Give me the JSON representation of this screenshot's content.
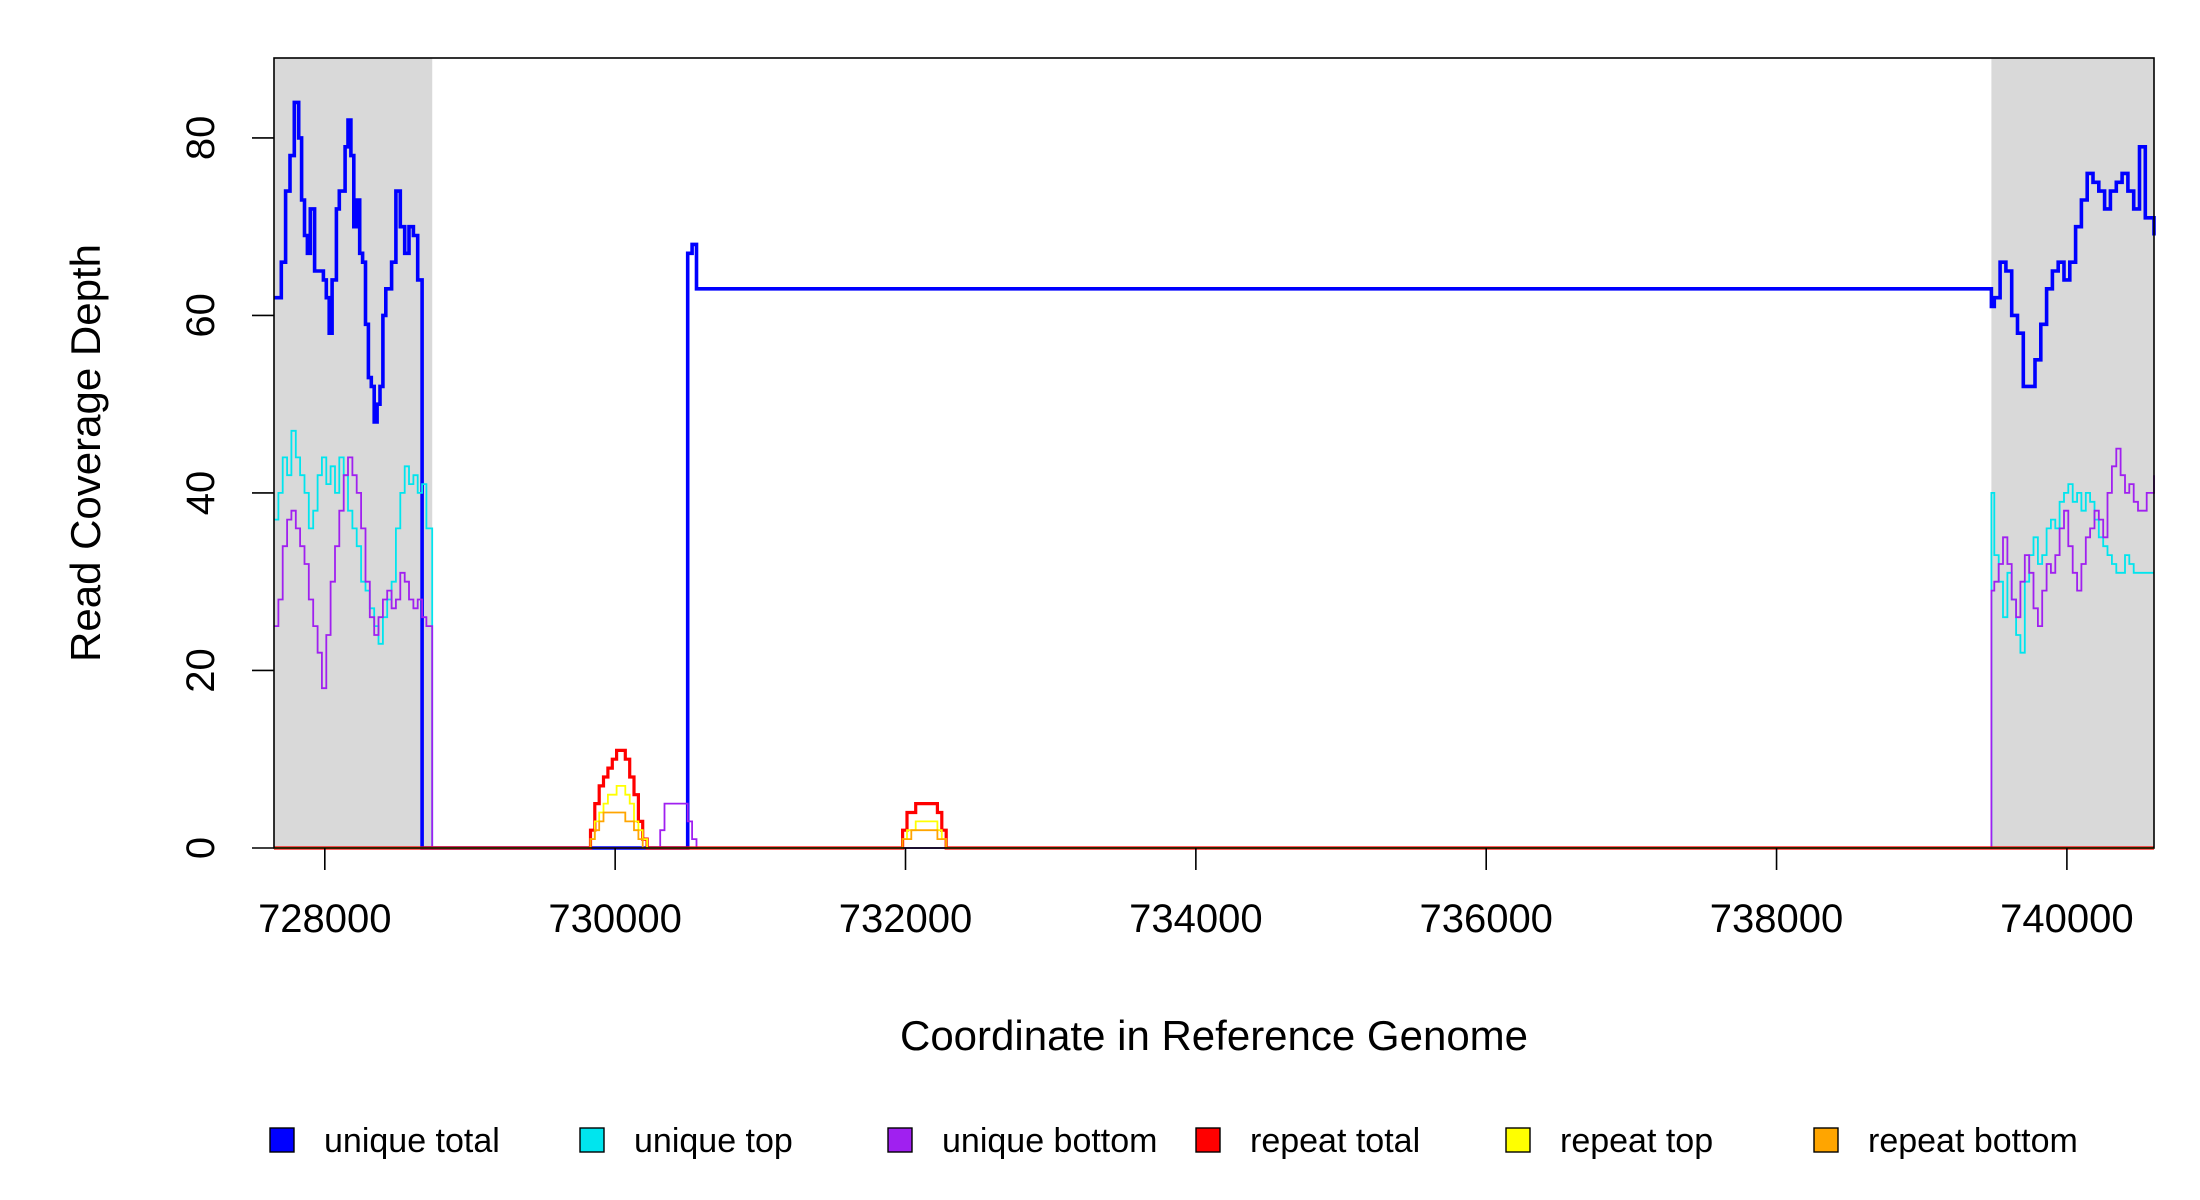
{
  "chart_data": {
    "type": "line",
    "xlabel": "Coordinate in Reference Genome",
    "ylabel": "Read Coverage Depth",
    "xlim": [
      727650,
      740600
    ],
    "ylim": [
      0,
      89
    ],
    "x_ticks": [
      728000,
      730000,
      732000,
      734000,
      736000,
      738000,
      740000
    ],
    "y_ticks": [
      0,
      20,
      40,
      60,
      80
    ],
    "shaded_regions": [
      {
        "x0": 727650,
        "x1": 728740
      },
      {
        "x0": 739480,
        "x1": 740600
      }
    ],
    "legend_position": "bottom",
    "series": [
      {
        "name": "unique total",
        "color": "#0000ff",
        "x": [
          727650,
          727700,
          727730,
          727760,
          727790,
          727820,
          727840,
          727860,
          727880,
          727900,
          727930,
          727960,
          727990,
          728010,
          728030,
          728050,
          728080,
          728100,
          728120,
          728140,
          728160,
          728180,
          728200,
          728220,
          728240,
          728260,
          728280,
          728300,
          728320,
          728340,
          728360,
          728380,
          728400,
          728420,
          728440,
          728460,
          728490,
          728520,
          728550,
          728580,
          728610,
          728640,
          728670,
          728700,
          728720,
          728740,
          728760,
          729800,
          730100,
          730280,
          730300,
          730330,
          730360,
          730400,
          730450,
          730500,
          730530,
          730560,
          739480,
          739500,
          739540,
          739580,
          739620,
          739660,
          739700,
          739740,
          739780,
          739820,
          739860,
          739900,
          739940,
          739980,
          740020,
          740060,
          740100,
          740140,
          740180,
          740220,
          740260,
          740300,
          740340,
          740380,
          740420,
          740460,
          740500,
          740540,
          740600
        ],
        "y": [
          62,
          66,
          74,
          78,
          84,
          80,
          73,
          69,
          67,
          72,
          65,
          65,
          64,
          62,
          58,
          64,
          72,
          74,
          74,
          79,
          82,
          78,
          70,
          73,
          67,
          66,
          59,
          53,
          52,
          48,
          50,
          52,
          60,
          63,
          63,
          66,
          74,
          70,
          67,
          70,
          69,
          64,
          0,
          0,
          0,
          0,
          0,
          0,
          0,
          0,
          0,
          0,
          0,
          0,
          0,
          67,
          68,
          63,
          61,
          62,
          66,
          65,
          60,
          58,
          52,
          52,
          55,
          59,
          63,
          65,
          66,
          64,
          66,
          70,
          73,
          76,
          75,
          74,
          72,
          74,
          75,
          76,
          74,
          72,
          79,
          71,
          69
        ]
      },
      {
        "name": "unique top",
        "color": "#00e5ee",
        "x": [
          727650,
          727680,
          727710,
          727740,
          727770,
          727800,
          727830,
          727860,
          727890,
          727920,
          727950,
          727980,
          728010,
          728040,
          728070,
          728100,
          728130,
          728160,
          728190,
          728220,
          728250,
          728280,
          728310,
          728340,
          728370,
          728400,
          728430,
          728460,
          728490,
          728520,
          728550,
          728580,
          728610,
          728640,
          728670,
          728700,
          728740,
          728760,
          739480,
          739500,
          739530,
          739560,
          739590,
          739620,
          739650,
          739680,
          739710,
          739740,
          739770,
          739800,
          739830,
          739860,
          739890,
          739920,
          739950,
          739980,
          740010,
          740040,
          740070,
          740100,
          740130,
          740160,
          740190,
          740220,
          740250,
          740280,
          740310,
          740340,
          740370,
          740400,
          740430,
          740460,
          740490,
          740520,
          740550,
          740600
        ],
        "y": [
          37,
          40,
          44,
          42,
          47,
          44,
          42,
          40,
          36,
          38,
          42,
          44,
          41,
          43,
          40,
          44,
          42,
          38,
          36,
          34,
          30,
          29,
          27,
          25,
          23,
          26,
          28,
          30,
          36,
          40,
          43,
          41,
          42,
          40,
          41,
          36,
          0,
          0,
          40,
          33,
          30,
          26,
          31,
          28,
          24,
          22,
          30,
          33,
          35,
          32,
          33,
          36,
          37,
          36,
          39,
          40,
          41,
          39,
          40,
          38,
          40,
          39,
          37,
          35,
          34,
          33,
          32,
          31,
          31,
          33,
          32,
          31,
          31,
          31,
          31,
          31
        ],
        "note": ""
      },
      {
        "name": "unique bottom",
        "color": "#a020f0",
        "x": [
          727650,
          727680,
          727710,
          727740,
          727770,
          727800,
          727830,
          727860,
          727890,
          727920,
          727950,
          727980,
          728010,
          728040,
          728070,
          728100,
          728130,
          728160,
          728190,
          728220,
          728250,
          728280,
          728310,
          728340,
          728370,
          728400,
          728430,
          728460,
          728490,
          728520,
          728550,
          728580,
          728610,
          728640,
          728670,
          728700,
          728740,
          728760,
          730280,
          730310,
          730340,
          730400,
          730460,
          730500,
          730530,
          730560,
          739480,
          739500,
          739530,
          739560,
          739590,
          739620,
          739650,
          739680,
          739710,
          739740,
          739770,
          739800,
          739830,
          739860,
          739890,
          739920,
          739950,
          739980,
          740010,
          740040,
          740070,
          740100,
          740130,
          740160,
          740190,
          740220,
          740250,
          740280,
          740310,
          740340,
          740370,
          740400,
          740430,
          740460,
          740490,
          740520,
          740550,
          740600
        ],
        "y": [
          25,
          28,
          34,
          37,
          38,
          36,
          34,
          32,
          28,
          25,
          22,
          18,
          24,
          30,
          34,
          38,
          42,
          44,
          42,
          40,
          36,
          30,
          26,
          24,
          26,
          28,
          29,
          27,
          28,
          31,
          30,
          28,
          27,
          28,
          26,
          25,
          0,
          0,
          0,
          2,
          5,
          5,
          5,
          3,
          1,
          0,
          29,
          30,
          32,
          35,
          32,
          28,
          26,
          30,
          33,
          31,
          27,
          25,
          29,
          32,
          31,
          33,
          36,
          38,
          34,
          31,
          29,
          32,
          35,
          36,
          38,
          37,
          35,
          40,
          43,
          45,
          42,
          40,
          41,
          39,
          38,
          38,
          40,
          42
        ]
      },
      {
        "name": "repeat total",
        "color": "#ff0000",
        "x": [
          727650,
          729800,
          729830,
          729860,
          729890,
          729920,
          729950,
          729980,
          730010,
          730040,
          730070,
          730100,
          730130,
          730160,
          730190,
          730220,
          730250,
          731950,
          731980,
          732010,
          732040,
          732070,
          732100,
          732130,
          732160,
          732190,
          732220,
          732250,
          732280,
          740600
        ],
        "y": [
          0,
          0,
          2,
          5,
          7,
          8,
          9,
          10,
          11,
          11,
          10,
          8,
          6,
          3,
          1,
          0,
          0,
          0,
          2,
          4,
          4,
          5,
          5,
          5,
          5,
          5,
          4,
          2,
          0,
          0
        ]
      },
      {
        "name": "repeat top",
        "color": "#ffff00",
        "x": [
          727650,
          729800,
          729830,
          729860,
          729890,
          729920,
          729950,
          729980,
          730010,
          730040,
          730070,
          730100,
          730130,
          730160,
          730190,
          730220,
          730250,
          731950,
          731980,
          732010,
          732040,
          732070,
          732100,
          732130,
          732160,
          732190,
          732220,
          732250,
          732280,
          740600
        ],
        "y": [
          0,
          0,
          1,
          3,
          4,
          5,
          6,
          6,
          7,
          7,
          6,
          5,
          3,
          2,
          1,
          0,
          0,
          0,
          1,
          2,
          2,
          3,
          3,
          3,
          3,
          3,
          2,
          1,
          0,
          0
        ]
      },
      {
        "name": "repeat bottom",
        "color": "#ffa500",
        "x": [
          727650,
          729800,
          729830,
          729860,
          729890,
          729920,
          729950,
          729980,
          730010,
          730040,
          730070,
          730100,
          730130,
          730160,
          730190,
          730220,
          730250,
          731950,
          731980,
          732010,
          732040,
          732070,
          732100,
          732130,
          732160,
          732190,
          732220,
          732250,
          732280,
          740600
        ],
        "y": [
          0,
          0,
          1,
          2,
          3,
          4,
          4,
          4,
          4,
          4,
          3,
          3,
          2,
          1,
          0,
          0,
          0,
          0,
          1,
          1,
          2,
          2,
          2,
          2,
          2,
          2,
          1,
          1,
          0,
          0
        ]
      }
    ]
  }
}
